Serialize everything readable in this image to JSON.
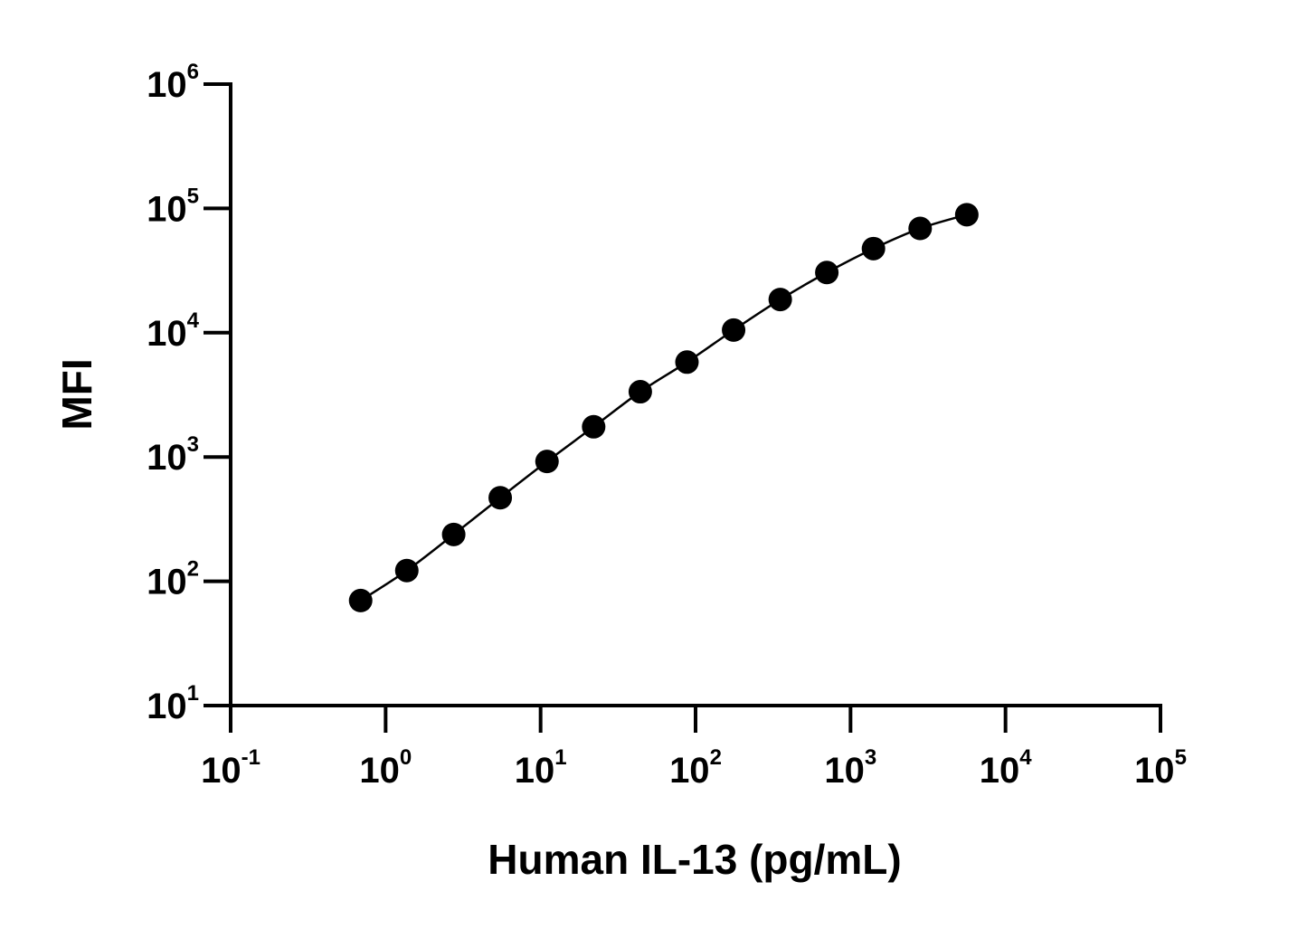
{
  "chart_data": {
    "type": "scatter",
    "xlabel": "Human IL-13 (pg/mL)",
    "ylabel": "MFI",
    "xscale": "log",
    "yscale": "log",
    "xlim": [
      0.1,
      100000
    ],
    "ylim": [
      10,
      1000000
    ],
    "x_ticks": [
      {
        "base": "10",
        "exp": "-1"
      },
      {
        "base": "10",
        "exp": "0"
      },
      {
        "base": "10",
        "exp": "1"
      },
      {
        "base": "10",
        "exp": "2"
      },
      {
        "base": "10",
        "exp": "3"
      },
      {
        "base": "10",
        "exp": "4"
      },
      {
        "base": "10",
        "exp": "5"
      }
    ],
    "y_ticks": [
      {
        "base": "10",
        "exp": "1"
      },
      {
        "base": "10",
        "exp": "2"
      },
      {
        "base": "10",
        "exp": "3"
      },
      {
        "base": "10",
        "exp": "4"
      },
      {
        "base": "10",
        "exp": "5"
      },
      {
        "base": "10",
        "exp": "6"
      }
    ],
    "grid": false,
    "marker_color": "#000000",
    "line_color": "#000000",
    "fit_line": true,
    "series": [
      {
        "x": [
          0.69,
          1.37,
          2.75,
          5.49,
          11.0,
          22.0,
          44.0,
          88.0,
          176,
          352,
          703,
          1406,
          2813,
          5625
        ],
        "y": [
          70,
          122,
          238,
          470,
          920,
          1750,
          3350,
          5800,
          10500,
          18500,
          30500,
          47500,
          69000,
          89000
        ]
      }
    ]
  }
}
